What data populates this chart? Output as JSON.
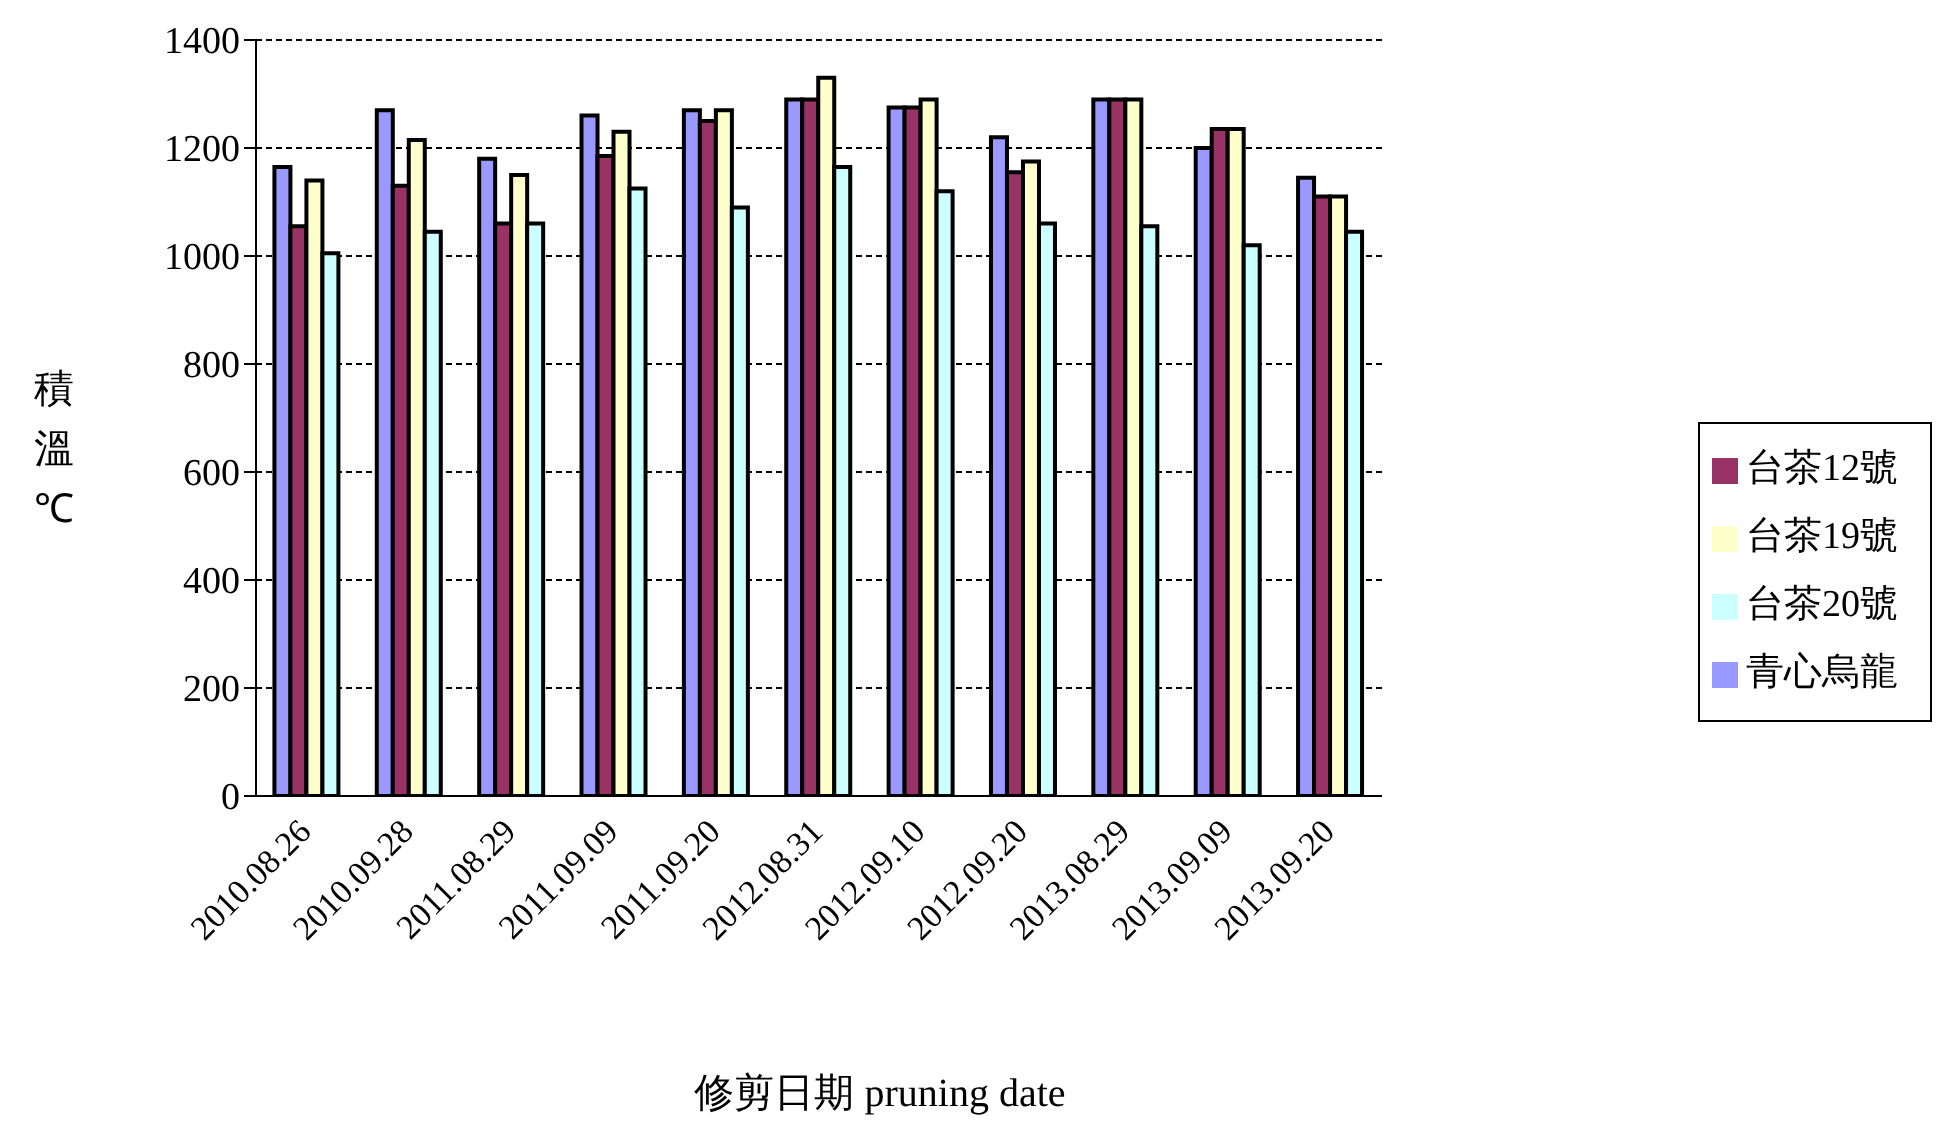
{
  "chart_data": {
    "type": "bar",
    "xlabel": "修剪日期 pruning date",
    "ylabel": "積溫℃",
    "categories": [
      "2010.08.26",
      "2010.09.28",
      "2011.08.29",
      "2011.09.09",
      "2011.09.20",
      "2012.08.31",
      "2012.09.10",
      "2012.09.20",
      "2013.08.29",
      "2013.09.09",
      "2013.09.20"
    ],
    "series": [
      {
        "name": "青心烏龍",
        "color": "#9999ff",
        "values": [
          1165,
          1270,
          1180,
          1260,
          1270,
          1290,
          1275,
          1220,
          1290,
          1200,
          1145
        ]
      },
      {
        "name": "台茶12號",
        "color": "#993366",
        "values": [
          1055,
          1130,
          1060,
          1185,
          1250,
          1290,
          1275,
          1155,
          1290,
          1235,
          1110
        ]
      },
      {
        "name": "台茶19號",
        "color": "#ffffcc",
        "values": [
          1140,
          1215,
          1150,
          1230,
          1270,
          1330,
          1290,
          1175,
          1290,
          1235,
          1110
        ]
      },
      {
        "name": "台茶20號",
        "color": "#ccffff",
        "values": [
          1005,
          1045,
          1060,
          1125,
          1090,
          1165,
          1120,
          1060,
          1055,
          1020,
          1045
        ]
      }
    ],
    "ylim": [
      0,
      1400
    ],
    "yticks": [
      0,
      200,
      400,
      600,
      800,
      1000,
      1200,
      1400
    ],
    "grid": "y",
    "legend": "right"
  }
}
